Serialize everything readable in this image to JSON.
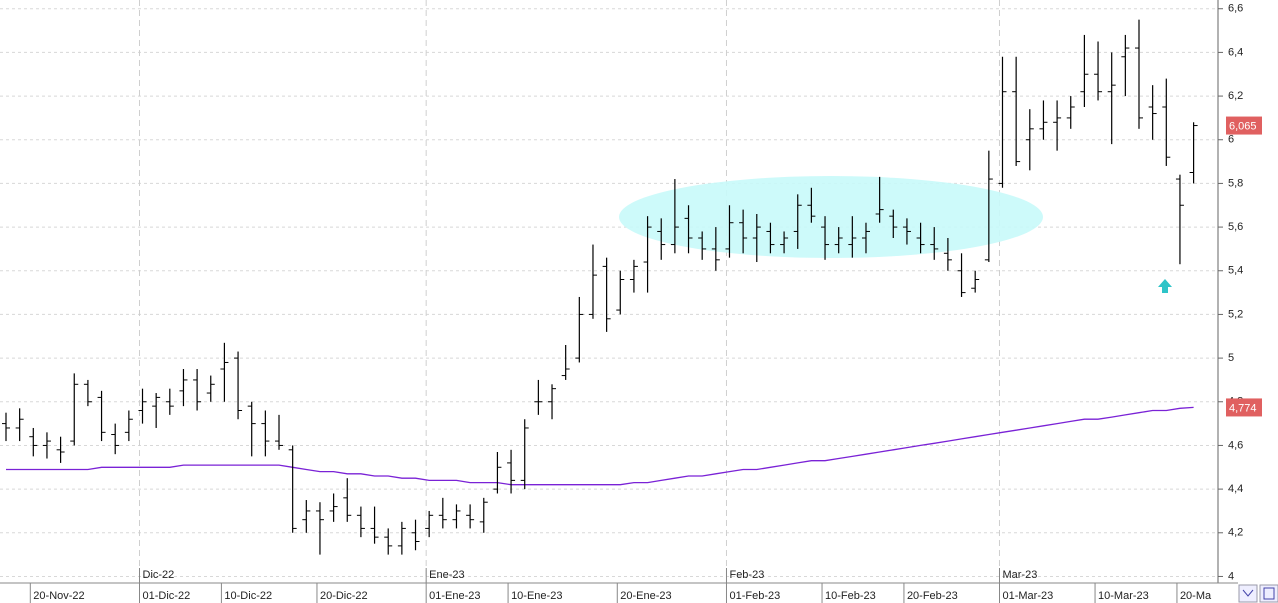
{
  "chart_data": {
    "type": "ohlc",
    "categories": [
      null,
      null,
      "20-Nov-22",
      null,
      null,
      null,
      null,
      null,
      null,
      null,
      "01-Dic-22",
      null,
      null,
      null,
      null,
      null,
      "10-Dic-22",
      null,
      null,
      null,
      null,
      null,
      null,
      "20-Dic-22",
      null,
      null,
      null,
      null,
      null,
      null,
      null,
      "01-Ene-23",
      null,
      null,
      null,
      null,
      null,
      "10-Ene-23",
      null,
      null,
      null,
      null,
      null,
      null,
      null,
      "20-Ene-23",
      null,
      null,
      null,
      null,
      null,
      null,
      null,
      "01-Feb-23",
      null,
      null,
      null,
      null,
      null,
      null,
      "10-Feb-23",
      null,
      null,
      null,
      null,
      null,
      "20-Feb-23",
      null,
      null,
      null,
      null,
      null,
      null,
      "01-Mar-23",
      null,
      null,
      null,
      null,
      null,
      null,
      "10-Mar-23",
      null,
      null,
      null,
      null,
      null,
      "20-Ma",
      null
    ],
    "month_categories": [
      null,
      null,
      null,
      null,
      null,
      null,
      null,
      null,
      null,
      null,
      "Dic-22",
      null,
      null,
      null,
      null,
      null,
      null,
      null,
      null,
      null,
      null,
      null,
      null,
      null,
      null,
      null,
      null,
      null,
      null,
      null,
      null,
      "Ene-23",
      null,
      null,
      null,
      null,
      null,
      null,
      null,
      null,
      null,
      null,
      null,
      null,
      null,
      null,
      null,
      null,
      null,
      null,
      null,
      null,
      null,
      "Feb-23",
      null,
      null,
      null,
      null,
      null,
      null,
      null,
      null,
      null,
      null,
      null,
      null,
      null,
      null,
      null,
      null,
      null,
      null,
      null,
      "Mar-23",
      null,
      null,
      null,
      null,
      null,
      null,
      null,
      null,
      null,
      null,
      null,
      null,
      null,
      null
    ],
    "open": [
      4.7,
      4.68,
      4.64,
      4.6,
      4.58,
      4.62,
      4.88,
      4.82,
      4.65,
      4.66,
      4.76,
      4.78,
      4.8,
      4.85,
      4.9,
      4.84,
      4.95,
      5.0,
      4.78,
      4.7,
      4.62,
      4.58,
      4.26,
      4.3,
      4.3,
      4.36,
      4.28,
      4.22,
      4.18,
      4.14,
      4.2,
      4.22,
      4.28,
      4.26,
      4.28,
      4.25,
      4.4,
      4.52,
      4.44,
      4.8,
      4.8,
      4.92,
      5.0,
      5.2,
      5.42,
      5.22,
      5.36,
      5.44,
      5.58,
      5.52,
      5.64,
      5.55,
      5.5,
      5.5,
      5.62,
      5.55,
      5.58,
      5.52,
      5.58,
      5.7,
      5.6,
      5.52,
      5.52,
      5.55,
      5.66,
      5.65,
      5.6,
      5.55,
      5.52,
      5.48,
      5.4,
      5.32,
      5.45,
      5.8,
      6.22,
      6.0,
      6.05,
      6.08,
      6.1,
      6.22,
      6.3,
      6.22,
      6.38,
      6.42,
      6.15,
      6.15,
      5.82,
      5.85
    ],
    "high": [
      4.75,
      4.77,
      4.68,
      4.66,
      4.64,
      4.93,
      4.9,
      4.85,
      4.7,
      4.76,
      4.86,
      4.84,
      4.86,
      4.95,
      4.95,
      4.92,
      5.07,
      5.03,
      4.8,
      4.76,
      4.74,
      4.6,
      4.35,
      4.34,
      4.38,
      4.45,
      4.32,
      4.32,
      4.22,
      4.25,
      4.26,
      4.3,
      4.36,
      4.33,
      4.33,
      4.36,
      4.57,
      4.58,
      4.72,
      4.9,
      4.88,
      5.06,
      5.28,
      5.52,
      5.46,
      5.4,
      5.45,
      5.65,
      5.64,
      5.82,
      5.7,
      5.58,
      5.6,
      5.7,
      5.68,
      5.66,
      5.62,
      5.58,
      5.75,
      5.78,
      5.65,
      5.6,
      5.65,
      5.62,
      5.83,
      5.68,
      5.64,
      5.62,
      5.6,
      5.55,
      5.48,
      5.4,
      5.95,
      6.38,
      6.38,
      6.14,
      6.18,
      6.18,
      6.2,
      6.48,
      6.45,
      6.4,
      6.48,
      6.55,
      6.25,
      6.28,
      5.84,
      6.08
    ],
    "low": [
      4.62,
      4.62,
      4.55,
      4.54,
      4.52,
      4.6,
      4.78,
      4.62,
      4.56,
      4.62,
      4.7,
      4.68,
      4.74,
      4.78,
      4.76,
      4.8,
      4.8,
      4.72,
      4.55,
      4.55,
      4.58,
      4.2,
      4.2,
      4.1,
      4.25,
      4.25,
      4.18,
      4.15,
      4.1,
      4.1,
      4.12,
      4.18,
      4.22,
      4.22,
      4.22,
      4.2,
      4.38,
      4.38,
      4.4,
      4.74,
      4.72,
      4.9,
      4.98,
      5.18,
      5.12,
      5.2,
      5.3,
      5.3,
      5.45,
      5.48,
      5.48,
      5.45,
      5.4,
      5.46,
      5.48,
      5.44,
      5.48,
      5.48,
      5.5,
      5.62,
      5.45,
      5.48,
      5.46,
      5.48,
      5.62,
      5.55,
      5.52,
      5.48,
      5.45,
      5.4,
      5.28,
      5.3,
      5.44,
      5.78,
      5.88,
      5.86,
      6.0,
      5.95,
      6.05,
      6.15,
      6.18,
      5.98,
      6.2,
      6.05,
      6.0,
      5.88,
      5.43,
      5.8
    ],
    "close": [
      4.68,
      4.72,
      4.6,
      4.62,
      4.57,
      4.88,
      4.8,
      4.66,
      4.6,
      4.72,
      4.8,
      4.82,
      4.78,
      4.9,
      4.8,
      4.88,
      4.98,
      4.76,
      4.7,
      4.62,
      4.6,
      4.22,
      4.3,
      4.26,
      4.32,
      4.28,
      4.22,
      4.18,
      4.14,
      4.22,
      4.16,
      4.28,
      4.26,
      4.3,
      4.26,
      4.34,
      4.5,
      4.44,
      4.68,
      4.8,
      4.86,
      4.95,
      5.2,
      5.38,
      5.18,
      5.36,
      5.42,
      5.6,
      5.52,
      5.6,
      5.55,
      5.5,
      5.45,
      5.62,
      5.55,
      5.6,
      5.52,
      5.55,
      5.7,
      5.65,
      5.52,
      5.55,
      5.55,
      5.58,
      5.68,
      5.6,
      5.58,
      5.52,
      5.5,
      5.45,
      5.3,
      5.36,
      5.82,
      6.22,
      5.9,
      6.05,
      6.08,
      6.1,
      6.15,
      6.3,
      6.22,
      6.25,
      6.42,
      6.1,
      6.12,
      5.92,
      5.7,
      6.065
    ],
    "color": "#000000",
    "ma": [
      4.49,
      4.49,
      4.49,
      4.49,
      4.49,
      4.49,
      4.49,
      4.5,
      4.5,
      4.5,
      4.5,
      4.5,
      4.5,
      4.51,
      4.51,
      4.51,
      4.51,
      4.51,
      4.51,
      4.51,
      4.51,
      4.5,
      4.49,
      4.48,
      4.48,
      4.47,
      4.47,
      4.46,
      4.46,
      4.45,
      4.45,
      4.44,
      4.44,
      4.44,
      4.43,
      4.43,
      4.43,
      4.42,
      4.42,
      4.42,
      4.42,
      4.42,
      4.42,
      4.42,
      4.42,
      4.42,
      4.43,
      4.43,
      4.44,
      4.45,
      4.46,
      4.46,
      4.47,
      4.48,
      4.49,
      4.49,
      4.5,
      4.51,
      4.52,
      4.53,
      4.53,
      4.54,
      4.55,
      4.56,
      4.57,
      4.58,
      4.59,
      4.6,
      4.61,
      4.62,
      4.63,
      4.64,
      4.65,
      4.66,
      4.67,
      4.68,
      4.69,
      4.7,
      4.71,
      4.72,
      4.72,
      4.73,
      4.74,
      4.75,
      4.76,
      4.76,
      4.77,
      4.774
    ],
    "ma_color": "#7a22d6",
    "last_price": {
      "value": 6.065,
      "label": "6,065",
      "color": "#e06060"
    },
    "last_ma": {
      "value": 4.774,
      "label": "4,774",
      "color": "#e06060"
    },
    "ylim": [
      3.97,
      6.64
    ],
    "yticks": [
      4,
      {
        "value": 4.2,
        "label": "4,2"
      },
      {
        "value": 4.4,
        "label": "4,4"
      },
      {
        "value": 4.6,
        "label": "4,6"
      },
      {
        "value": 4.8,
        "label": "4,8"
      },
      5,
      {
        "value": 5.2,
        "label": "5,2"
      },
      {
        "value": 5.4,
        "label": "5,4"
      },
      {
        "value": 5.6,
        "label": "5,6"
      },
      {
        "value": 5.8,
        "label": "5,8"
      },
      6,
      {
        "value": 6.2,
        "label": "6,2"
      },
      {
        "value": 6.4,
        "label": "6,4"
      },
      {
        "value": 6.6,
        "label": "6,6"
      }
    ],
    "grid": true
  }
}
